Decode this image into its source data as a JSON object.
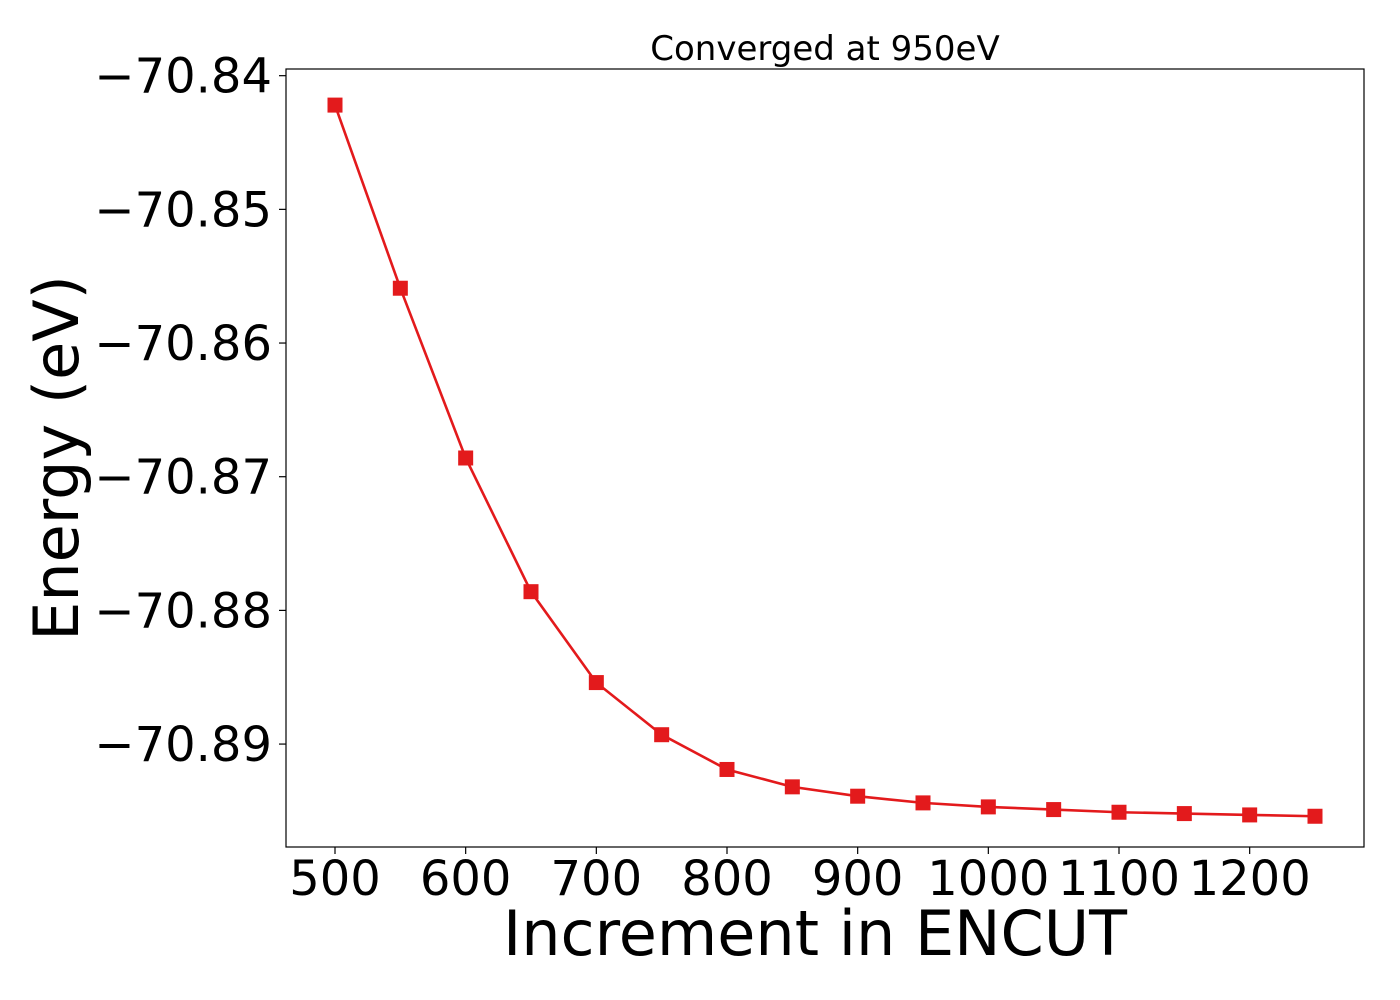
{
  "chart_data": {
    "type": "line",
    "title": "Converged at 950eV",
    "xlabel": "Increment in ENCUT",
    "ylabel": "Energy (eV)",
    "x": [
      500,
      550,
      600,
      650,
      700,
      750,
      800,
      850,
      900,
      950,
      1000,
      1050,
      1100,
      1150,
      1200,
      1250
    ],
    "series": [
      {
        "values": [
          -70.8422,
          -70.8559,
          -70.8686,
          -70.8786,
          -70.8854,
          -70.8893,
          -70.8919,
          -70.8932,
          -70.8939,
          -70.8944,
          -70.8947,
          -70.8949,
          -70.8951,
          -70.8952,
          -70.8953,
          -70.8954
        ],
        "color": "#e31a1c",
        "marker": "square"
      }
    ],
    "xticks": [
      500,
      600,
      700,
      800,
      900,
      1000,
      1100,
      1200
    ],
    "xtick_labels": [
      "500",
      "600",
      "700",
      "800",
      "900",
      "1000",
      "1100",
      "1200"
    ],
    "yticks": [
      -70.84,
      -70.85,
      -70.86,
      -70.87,
      -70.88,
      -70.89
    ],
    "ytick_labels": [
      "−70.84",
      "−70.85",
      "−70.86",
      "−70.87",
      "−70.88",
      "−70.89"
    ],
    "xlim": [
      462.5,
      1287.5
    ],
    "ylim": [
      -70.8977,
      -70.8395
    ],
    "grid": false,
    "legend": "none"
  }
}
